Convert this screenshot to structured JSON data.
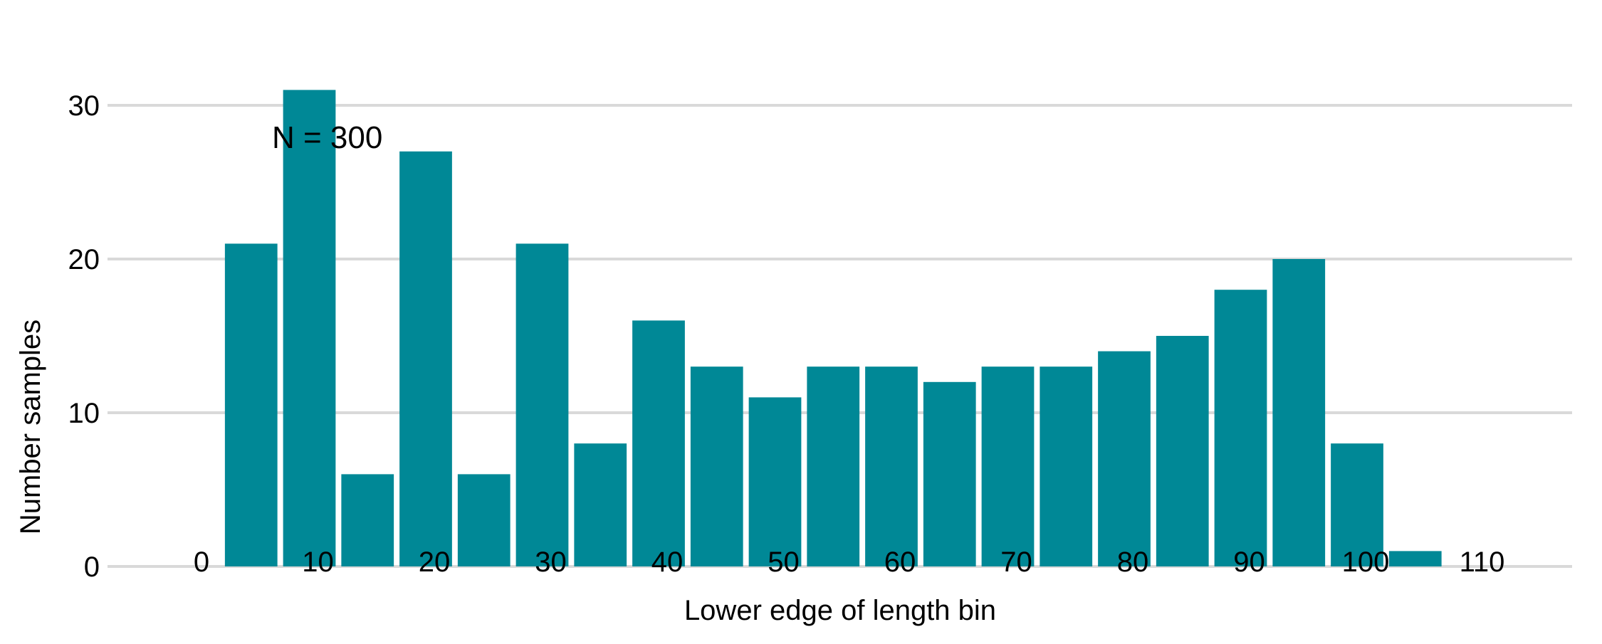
{
  "chart_data": {
    "type": "bar",
    "xlabel": "Lower edge of length bin",
    "ylabel": "Number samples",
    "annotation": "N = 300",
    "bar_color": "#008896",
    "grid_color": "#d9d9d9",
    "grid": true,
    "bin_width": 5,
    "bins": [
      5,
      10,
      15,
      20,
      25,
      30,
      35,
      40,
      45,
      50,
      55,
      60,
      65,
      70,
      75,
      80,
      85,
      90,
      95,
      100,
      105
    ],
    "values": [
      21,
      31,
      6,
      27,
      6,
      21,
      8,
      16,
      13,
      11,
      13,
      13,
      12,
      13,
      13,
      14,
      15,
      18,
      20,
      8,
      1
    ],
    "x_ticks": [
      "0",
      "10",
      "20",
      "30",
      "40",
      "50",
      "60",
      "70",
      "80",
      "90",
      "100",
      "110"
    ],
    "y_ticks": [
      "0",
      "10",
      "20",
      "30"
    ],
    "xlim": [
      0,
      110
    ],
    "ylim": [
      0,
      30
    ]
  }
}
